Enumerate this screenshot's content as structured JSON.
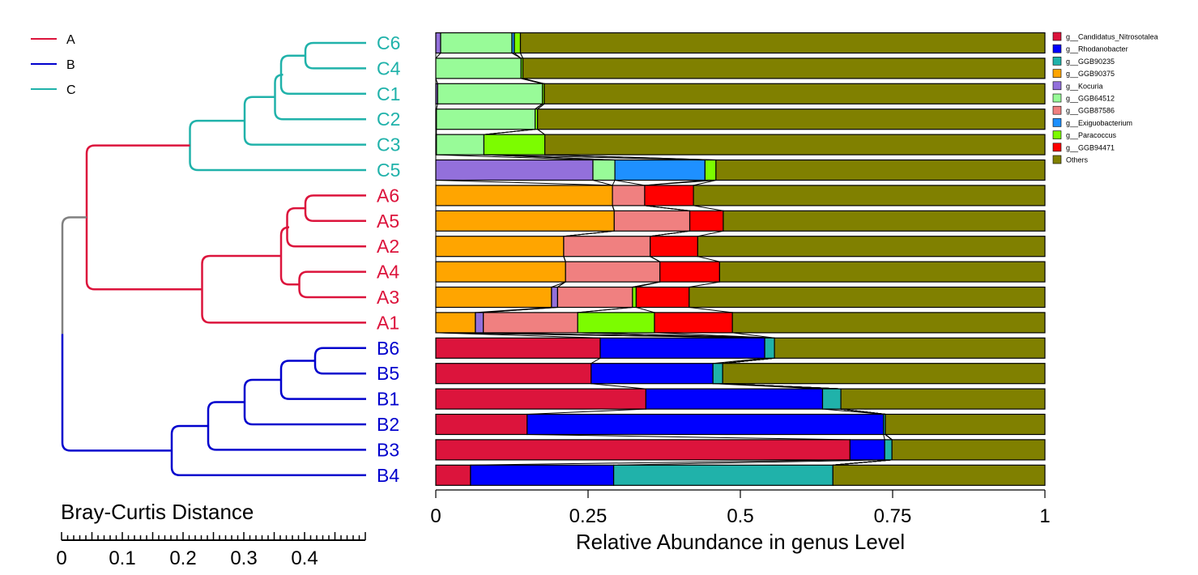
{
  "chart_data": {
    "type": "bar",
    "orientation": "horizontal",
    "stacked": true,
    "xlabel": "Relative Abundance in genus Level",
    "xlim": [
      0,
      1
    ],
    "xticks": [
      "0",
      "0.25",
      "0.5",
      "0.75",
      "1"
    ],
    "xtick_values": [
      0,
      0.25,
      0.5,
      0.75,
      1
    ],
    "grid": false,
    "legend_position": "right",
    "categories": [
      "C6",
      "C4",
      "C1",
      "C2",
      "C3",
      "C5",
      "A6",
      "A5",
      "A2",
      "A4",
      "A3",
      "A1",
      "B6",
      "B5",
      "B1",
      "B2",
      "B3",
      "B4"
    ],
    "sample_group": [
      "C",
      "C",
      "C",
      "C",
      "C",
      "C",
      "A",
      "A",
      "A",
      "A",
      "A",
      "A",
      "B",
      "B",
      "B",
      "B",
      "B",
      "B"
    ],
    "series": [
      {
        "name": "g__Candidatus_Nitrosotalea",
        "color": "#DC143C",
        "values": [
          0,
          0,
          0,
          0,
          0,
          0,
          0,
          0,
          0,
          0,
          0,
          0,
          0.27,
          0.255,
          0.345,
          0.15,
          0.68,
          0.057
        ]
      },
      {
        "name": "g__Rhodanobacter",
        "color": "#0000FF",
        "values": [
          0,
          0,
          0,
          0,
          0,
          0,
          0,
          0,
          0,
          0,
          0,
          0,
          0.27,
          0.2,
          0.29,
          0.585,
          0.057,
          0.235
        ]
      },
      {
        "name": "g__GGB90235",
        "color": "#20B2AA",
        "values": [
          0,
          0,
          0,
          0,
          0,
          0,
          0,
          0,
          0,
          0,
          0,
          0,
          0.016,
          0.016,
          0.03,
          0.003,
          0.012,
          0.36
        ]
      },
      {
        "name": "g__GGB90375",
        "color": "#FFA500",
        "values": [
          0,
          0,
          0,
          0,
          0,
          0,
          0.29,
          0.293,
          0.21,
          0.213,
          0.19,
          0.065,
          0,
          0,
          0,
          0,
          0,
          0
        ]
      },
      {
        "name": "g__Kocuria",
        "color": "#9370DB",
        "values": [
          0.008,
          0,
          0.003,
          0.001,
          0.001,
          0.258,
          0,
          0,
          0,
          0,
          0.01,
          0.013,
          0,
          0,
          0,
          0,
          0,
          0
        ]
      },
      {
        "name": "g__GGB64512",
        "color": "#98FB98",
        "values": [
          0.117,
          0.14,
          0.172,
          0.162,
          0.078,
          0.036,
          0,
          0,
          0,
          0,
          0,
          0,
          0,
          0,
          0,
          0,
          0,
          0
        ]
      },
      {
        "name": "g__GGB87586",
        "color": "#F08080",
        "values": [
          0,
          0,
          0,
          0,
          0,
          0,
          0.053,
          0.124,
          0.142,
          0.155,
          0.123,
          0.155,
          0,
          0,
          0,
          0,
          0,
          0
        ]
      },
      {
        "name": "g__Exiguobacterium",
        "color": "#1E90FF",
        "values": [
          0.004,
          0,
          0,
          0,
          0,
          0.148,
          0,
          0,
          0,
          0,
          0,
          0,
          0,
          0,
          0,
          0,
          0,
          0
        ]
      },
      {
        "name": "g__Paracoccus",
        "color": "#7CFC00",
        "values": [
          0.01,
          0.003,
          0.003,
          0.004,
          0.1,
          0.018,
          0,
          0,
          0,
          0,
          0.006,
          0.126,
          0,
          0,
          0,
          0,
          0,
          0
        ]
      },
      {
        "name": "g__GGB94471",
        "color": "#FF0000",
        "values": [
          0,
          0,
          0,
          0,
          0,
          0,
          0.08,
          0.055,
          0.078,
          0.098,
          0.087,
          0.128,
          0,
          0,
          0,
          0,
          0,
          0
        ]
      },
      {
        "name": "Others",
        "color": "#808000",
        "values": [
          0.861,
          0.857,
          0.822,
          0.833,
          0.821,
          0.54,
          0.577,
          0.528,
          0.57,
          0.534,
          0.584,
          0.513,
          0.444,
          0.529,
          0.335,
          0.262,
          0.251,
          0.348
        ]
      }
    ],
    "dendrogram": {
      "xlabel": "Bray-Curtis Distance",
      "xticks": [
        "0",
        "0.1",
        "0.2",
        "0.3",
        "0.4"
      ],
      "xtick_values": [
        0,
        0.1,
        0.2,
        0.3,
        0.4
      ],
      "xlim": [
        0,
        0.5
      ],
      "group_legend": [
        {
          "name": "A",
          "color": "#DC143C"
        },
        {
          "name": "B",
          "color": "#0000CD"
        },
        {
          "name": "C",
          "color": "#20B2AA"
        }
      ],
      "root_color": "#808080",
      "leaves": [
        "C6",
        "C4",
        "C1",
        "C2",
        "C3",
        "C5",
        "A6",
        "A5",
        "A2",
        "A4",
        "A3",
        "A1",
        "B6",
        "B5",
        "B1",
        "B2",
        "B3",
        "B4"
      ],
      "merges": [
        {
          "a": "C6",
          "b": "C4",
          "h": 0.1,
          "id": "n1",
          "group": "C"
        },
        {
          "a": "n1",
          "b": "C1",
          "h": 0.14,
          "id": "n2",
          "group": "C"
        },
        {
          "a": "n2",
          "b": "C2",
          "h": 0.15,
          "id": "n3",
          "group": "C"
        },
        {
          "a": "n3",
          "b": "C3",
          "h": 0.2,
          "id": "n4",
          "group": "C"
        },
        {
          "a": "n4",
          "b": "C5",
          "h": 0.29,
          "id": "n5",
          "group": "C"
        },
        {
          "a": "A6",
          "b": "A5",
          "h": 0.1,
          "id": "n6",
          "group": "A"
        },
        {
          "a": "n6",
          "b": "A2",
          "h": 0.13,
          "id": "n7",
          "group": "A"
        },
        {
          "a": "A4",
          "b": "A3",
          "h": 0.11,
          "id": "n8",
          "group": "A"
        },
        {
          "a": "n7",
          "b": "n8",
          "h": 0.14,
          "id": "n9",
          "group": "A"
        },
        {
          "a": "n9",
          "b": "A1",
          "h": 0.27,
          "id": "n10",
          "group": "A"
        },
        {
          "a": "n5",
          "b": "n10",
          "h": 0.46,
          "id": "n11",
          "group": "A"
        },
        {
          "a": "B6",
          "b": "B5",
          "h": 0.084,
          "id": "n12",
          "group": "B"
        },
        {
          "a": "n12",
          "b": "B1",
          "h": 0.14,
          "id": "n13",
          "group": "B"
        },
        {
          "a": "n13",
          "b": "B2",
          "h": 0.2,
          "id": "n14",
          "group": "B"
        },
        {
          "a": "n14",
          "b": "B3",
          "h": 0.26,
          "id": "n15",
          "group": "B"
        },
        {
          "a": "n15",
          "b": "B4",
          "h": 0.32,
          "id": "n16",
          "group": "B"
        },
        {
          "a": "n11",
          "b": "n16",
          "h": 0.5,
          "id": "n17",
          "group": "root"
        }
      ]
    }
  }
}
